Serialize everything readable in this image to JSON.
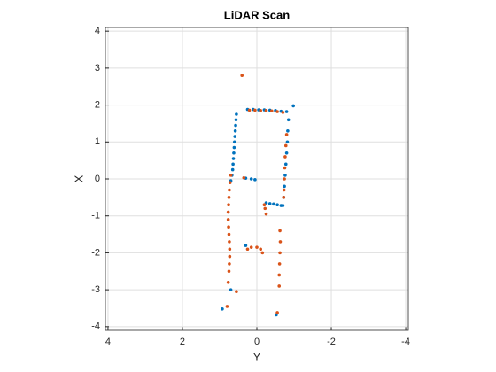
{
  "chart_data": {
    "type": "scatter",
    "title": "LiDAR Scan",
    "x_label": "Y",
    "y_label": "X",
    "xlim": [
      4.07,
      -4.07
    ],
    "ylim": [
      -4.1,
      4.1
    ],
    "xticks": [
      4,
      2,
      0,
      -2,
      -4
    ],
    "yticks": [
      -4,
      -3,
      -2,
      -1,
      0,
      1,
      2,
      3,
      4
    ],
    "x_reversed": true,
    "grid": true,
    "series": [
      {
        "color": "#0072bd",
        "x": [
          0.55,
          0.56,
          0.57,
          0.58,
          0.59,
          0.6,
          0.61,
          0.62,
          0.63,
          0.64,
          0.65,
          0.67,
          0.7,
          0.25,
          0.1,
          -0.05,
          -0.2,
          -0.35,
          -0.5,
          -0.65,
          -0.8,
          -0.98,
          -0.85,
          -0.83,
          -0.82,
          -0.8,
          -0.78,
          -0.76,
          -0.74,
          -0.72,
          -0.7,
          -0.25,
          -0.35,
          -0.45,
          -0.55,
          -0.65,
          0.3,
          0.15,
          0.05,
          0.3,
          0.7,
          0.93,
          -0.52
        ],
        "y": [
          1.75,
          1.6,
          1.45,
          1.3,
          1.15,
          1.0,
          0.85,
          0.7,
          0.55,
          0.4,
          0.25,
          0.1,
          -0.05,
          1.88,
          1.88,
          1.87,
          1.87,
          1.86,
          1.85,
          1.83,
          1.82,
          1.98,
          1.6,
          1.3,
          1.0,
          0.7,
          0.4,
          0.1,
          -0.2,
          -0.5,
          -0.72,
          -0.65,
          -0.67,
          -0.68,
          -0.7,
          -0.72,
          0.02,
          0.0,
          -0.02,
          -1.8,
          -3.0,
          -3.52,
          -3.68
        ]
      },
      {
        "color": "#d95319",
        "x": [
          0.7,
          0.72,
          0.74,
          0.75,
          0.76,
          0.77,
          0.77,
          0.76,
          0.75,
          0.74,
          0.73,
          0.73,
          0.74,
          0.75,
          0.77,
          0.2,
          0.05,
          -0.1,
          -0.25,
          -0.4,
          -0.55,
          -0.7,
          -0.8,
          -0.78,
          -0.76,
          -0.75,
          -0.74,
          -0.73,
          -0.72,
          0.4,
          0.35,
          -0.22,
          -0.25,
          -0.2,
          0.25,
          0.15,
          0.0,
          -0.1,
          -0.15,
          -0.62,
          -0.63,
          -0.62,
          -0.61,
          -0.6,
          -0.6,
          0.55,
          0.8,
          -0.55
        ],
        "y": [
          0.1,
          -0.1,
          -0.3,
          -0.5,
          -0.7,
          -0.9,
          -1.1,
          -1.3,
          -1.5,
          -1.7,
          -1.9,
          -2.1,
          -2.3,
          -2.5,
          -2.8,
          1.86,
          1.86,
          1.85,
          1.85,
          1.84,
          1.82,
          1.8,
          1.2,
          0.9,
          0.6,
          0.3,
          0.0,
          -0.3,
          -0.5,
          2.8,
          0.03,
          -0.8,
          -0.95,
          -0.7,
          -1.9,
          -1.85,
          -1.85,
          -1.9,
          -2.0,
          -1.4,
          -1.7,
          -2.0,
          -2.3,
          -2.6,
          -2.9,
          -3.05,
          -3.45,
          -3.62
        ]
      }
    ]
  }
}
